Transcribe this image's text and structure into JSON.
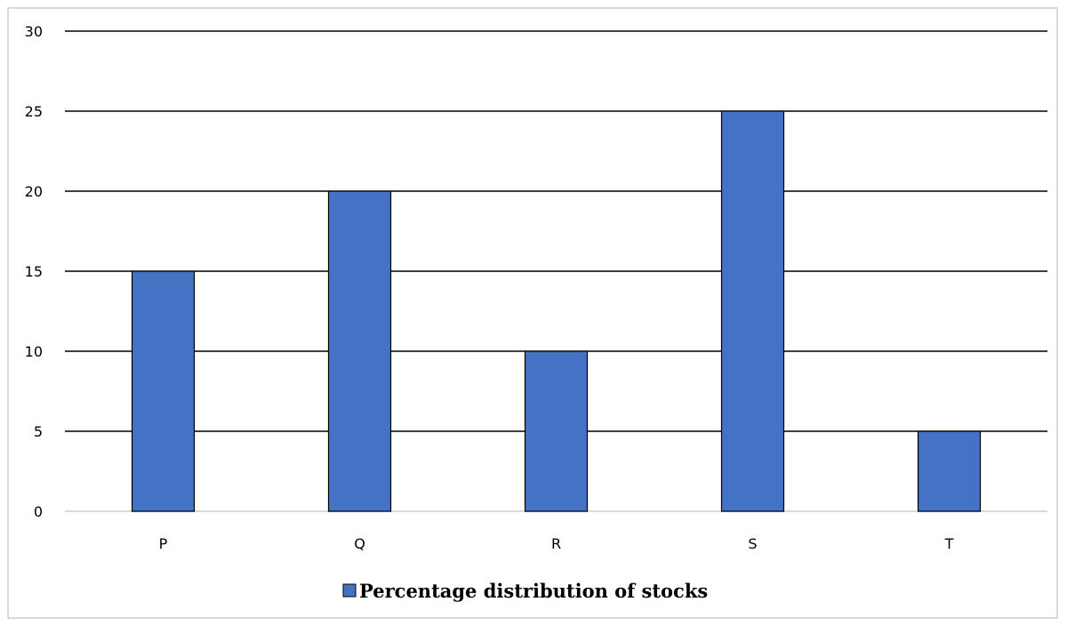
{
  "chart_data": {
    "type": "bar",
    "categories": [
      "P",
      "Q",
      "R",
      "S",
      "T"
    ],
    "series": [
      {
        "name": "Percentage distribution of stocks",
        "values": [
          15,
          20,
          10,
          25,
          5
        ]
      }
    ],
    "ylim": [
      0,
      30
    ],
    "yticks": [
      0,
      5,
      10,
      15,
      20,
      25,
      30
    ],
    "title": "",
    "xlabel": "",
    "ylabel": "",
    "grid": true,
    "legend_position": "bottom",
    "colors": {
      "bar": "#4472C4",
      "bar_stroke": "#000000",
      "grid": "#000000",
      "axis": "#d9d9d9"
    }
  }
}
